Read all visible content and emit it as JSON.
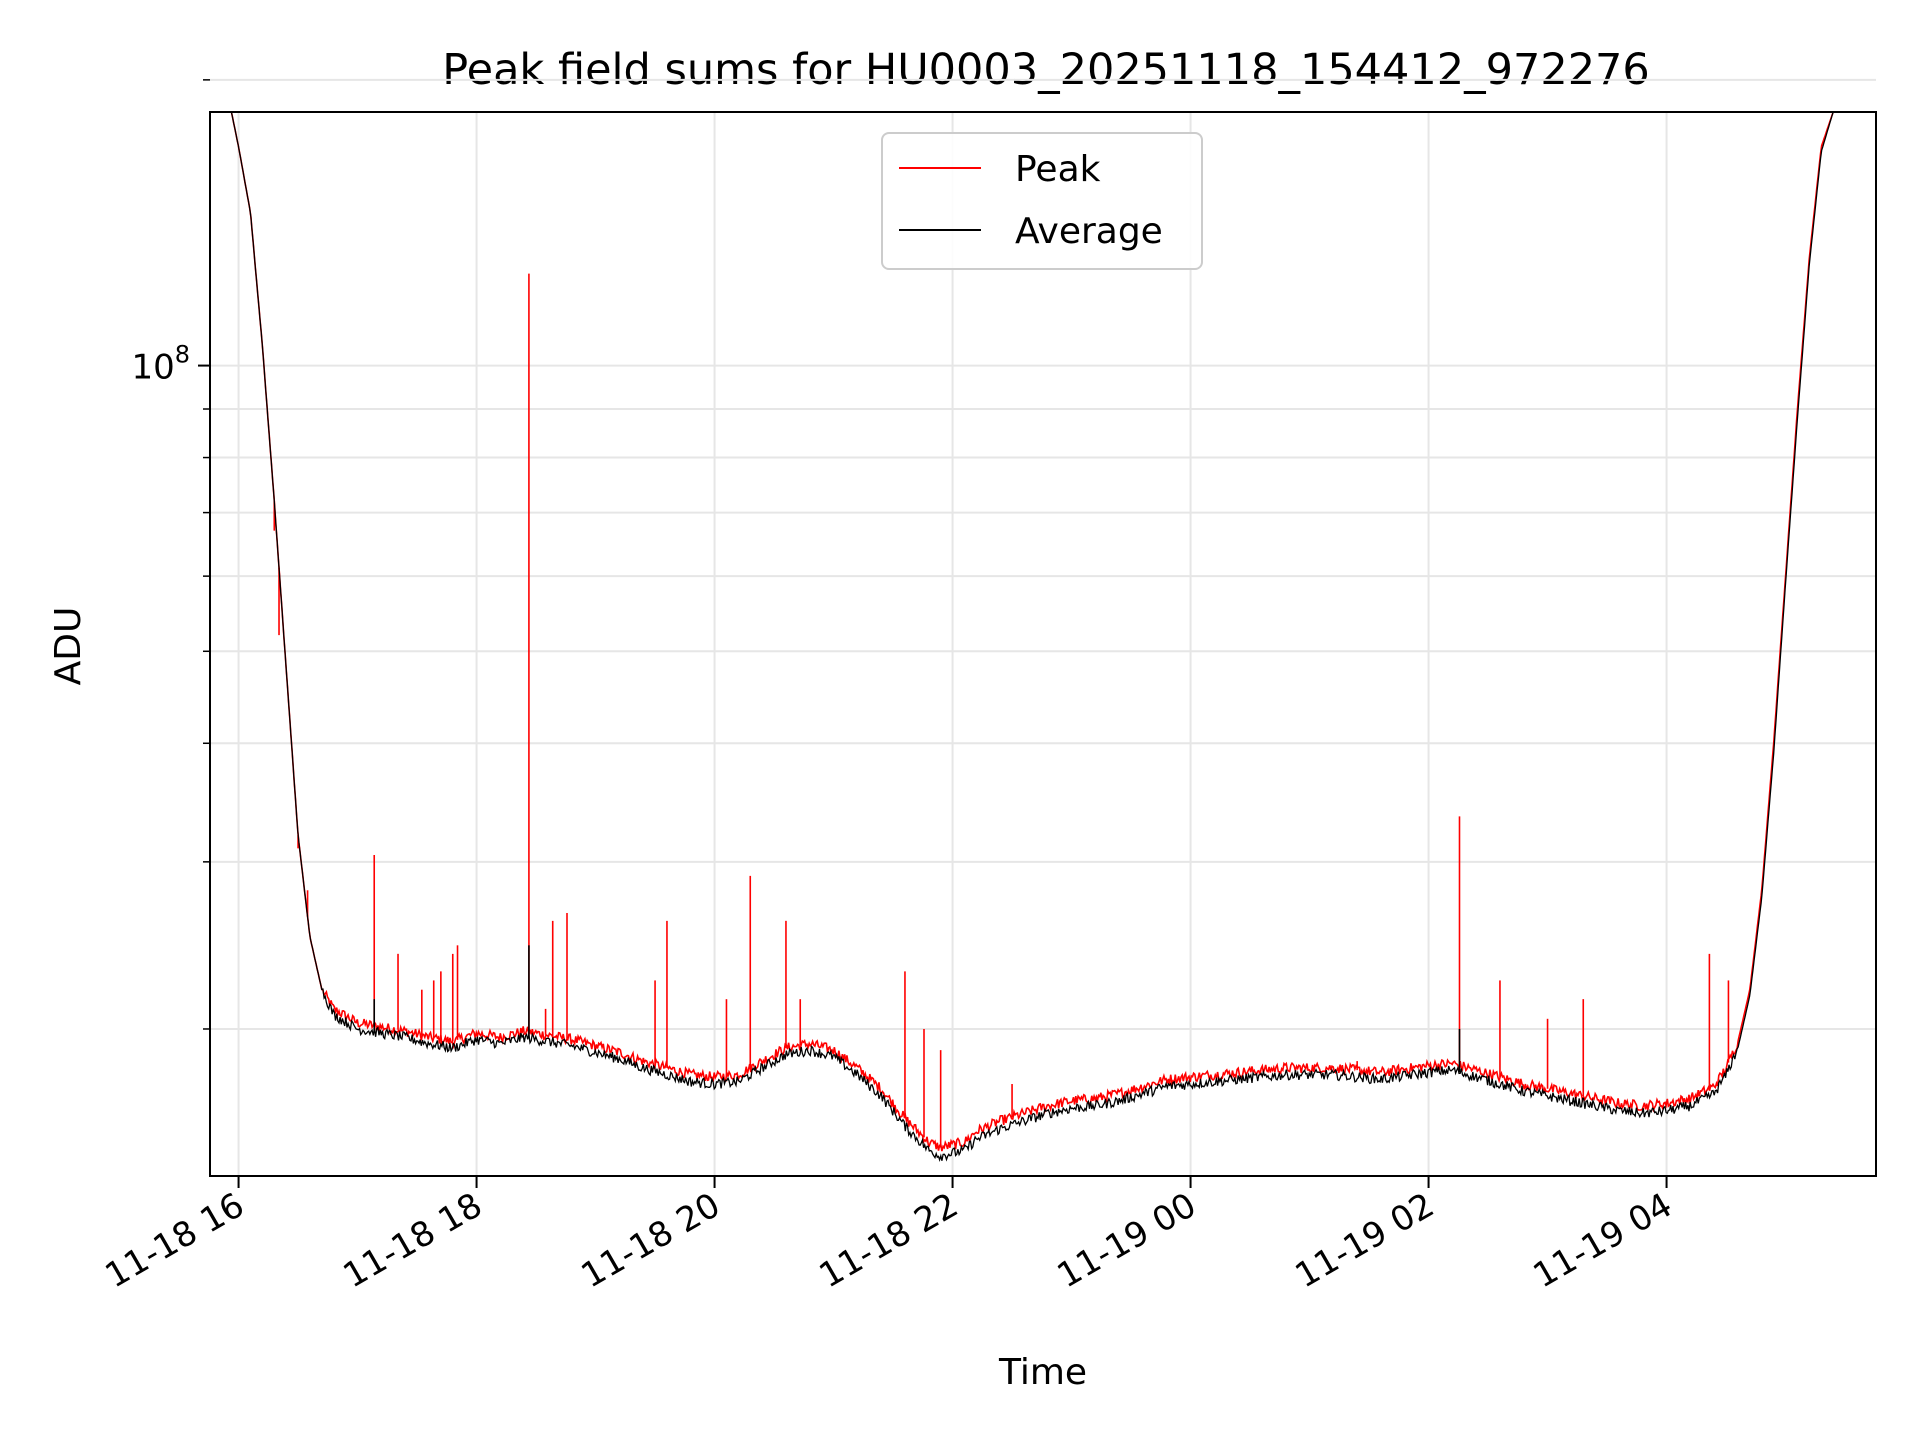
{
  "chart_data": {
    "type": "line",
    "title": "Peak field sums for HU0003_20251118_154412_972276",
    "xlabel": "Time",
    "ylabel": "ADU",
    "y_scale": "log",
    "grid": true,
    "legend_position": "top-center",
    "x_unit": "hours since 11-18 16:00",
    "xlim": [
      -0.12,
      6.88
    ],
    "ylim": [
      14000000,
      185000000
    ],
    "x_ticks": [
      {
        "x": 0,
        "label": "11-18 16"
      },
      {
        "x": 1,
        "label": "11-18 18"
      },
      {
        "x": 2,
        "label": "11-18 20"
      },
      {
        "x": 3,
        "label": "11-18 22"
      },
      {
        "x": 4,
        "label": "11-19 00"
      },
      {
        "x": 5,
        "label": "11-19 02"
      },
      {
        "x": 6,
        "label": "11-19 04"
      }
    ],
    "y_major_ticks": [
      {
        "value": 100000000,
        "base": "10",
        "exp": "8"
      }
    ],
    "y_minor_ticks": [
      20000000,
      30000000,
      40000000,
      50000000,
      60000000,
      70000000,
      80000000,
      90000000,
      200000000
    ],
    "series": [
      {
        "name": "Peak",
        "color": "#ff0000",
        "baseline": [
          [
            -0.03,
            185000000
          ],
          [
            0.0,
            170000000
          ],
          [
            0.05,
            145000000
          ],
          [
            0.1,
            105000000
          ],
          [
            0.15,
            72000000
          ],
          [
            0.2,
            48000000
          ],
          [
            0.25,
            32000000
          ],
          [
            0.3,
            25000000
          ],
          [
            0.35,
            22000000
          ],
          [
            0.4,
            21000000
          ],
          [
            0.5,
            20300000
          ],
          [
            0.6,
            20100000
          ],
          [
            0.7,
            19900000
          ],
          [
            0.8,
            19600000
          ],
          [
            0.9,
            19400000
          ],
          [
            1.0,
            19800000
          ],
          [
            1.1,
            19600000
          ],
          [
            1.2,
            19900000
          ],
          [
            1.3,
            19700000
          ],
          [
            1.4,
            19500000
          ],
          [
            1.5,
            19200000
          ],
          [
            1.6,
            18900000
          ],
          [
            1.7,
            18500000
          ],
          [
            1.8,
            18200000
          ],
          [
            1.9,
            17900000
          ],
          [
            2.0,
            17800000
          ],
          [
            2.1,
            17900000
          ],
          [
            2.2,
            18500000
          ],
          [
            2.3,
            19100000
          ],
          [
            2.4,
            19300000
          ],
          [
            2.5,
            19000000
          ],
          [
            2.6,
            18200000
          ],
          [
            2.7,
            17300000
          ],
          [
            2.8,
            16100000
          ],
          [
            2.9,
            15200000
          ],
          [
            2.95,
            15000000
          ],
          [
            3.05,
            15200000
          ],
          [
            3.1,
            15600000
          ],
          [
            3.2,
            16000000
          ],
          [
            3.3,
            16300000
          ],
          [
            3.4,
            16600000
          ],
          [
            3.5,
            16800000
          ],
          [
            3.6,
            16900000
          ],
          [
            3.7,
            17100000
          ],
          [
            3.8,
            17400000
          ],
          [
            3.9,
            17700000
          ],
          [
            4.0,
            17800000
          ],
          [
            4.2,
            18000000
          ],
          [
            4.4,
            18200000
          ],
          [
            4.6,
            18200000
          ],
          [
            4.8,
            18000000
          ],
          [
            5.0,
            18300000
          ],
          [
            5.1,
            18400000
          ],
          [
            5.2,
            18100000
          ],
          [
            5.3,
            17800000
          ],
          [
            5.4,
            17500000
          ],
          [
            5.5,
            17300000
          ],
          [
            5.6,
            17100000
          ],
          [
            5.7,
            16900000
          ],
          [
            5.8,
            16700000
          ],
          [
            5.9,
            16600000
          ],
          [
            6.0,
            16700000
          ],
          [
            6.1,
            16900000
          ],
          [
            6.2,
            17400000
          ],
          [
            6.25,
            18200000
          ],
          [
            6.3,
            19400000
          ],
          [
            6.35,
            22000000
          ],
          [
            6.4,
            28000000
          ],
          [
            6.45,
            40000000
          ],
          [
            6.5,
            60000000
          ],
          [
            6.55,
            90000000
          ],
          [
            6.6,
            130000000
          ],
          [
            6.65,
            170000000
          ],
          [
            6.7,
            185000000
          ]
        ],
        "spikes": [
          [
            0.15,
            67000000
          ],
          [
            0.17,
            52000000
          ],
          [
            0.25,
            31000000
          ],
          [
            0.29,
            28000000
          ],
          [
            0.57,
            30500000
          ],
          [
            0.67,
            24000000
          ],
          [
            0.77,
            22000000
          ],
          [
            0.82,
            22500000
          ],
          [
            0.85,
            23000000
          ],
          [
            0.9,
            24000000
          ],
          [
            0.92,
            24500000
          ],
          [
            1.22,
            125000000
          ],
          [
            1.29,
            21000000
          ],
          [
            1.32,
            26000000
          ],
          [
            1.38,
            26500000
          ],
          [
            1.75,
            22500000
          ],
          [
            1.8,
            26000000
          ],
          [
            2.05,
            21500000
          ],
          [
            2.15,
            29000000
          ],
          [
            2.3,
            26000000
          ],
          [
            2.36,
            21500000
          ],
          [
            2.8,
            23000000
          ],
          [
            2.88,
            20000000
          ],
          [
            2.95,
            19000000
          ],
          [
            3.25,
            17500000
          ],
          [
            4.7,
            18500000
          ],
          [
            5.13,
            33500000
          ],
          [
            5.3,
            22500000
          ],
          [
            5.5,
            20500000
          ],
          [
            5.65,
            21500000
          ],
          [
            6.18,
            24000000
          ],
          [
            6.26,
            22500000
          ]
        ]
      },
      {
        "name": "Average",
        "color": "#000000",
        "baseline": [
          [
            -0.03,
            185000000
          ],
          [
            0.0,
            170000000
          ],
          [
            0.05,
            145000000
          ],
          [
            0.1,
            105000000
          ],
          [
            0.15,
            72000000
          ],
          [
            0.2,
            48000000
          ],
          [
            0.25,
            32000000
          ],
          [
            0.3,
            25000000
          ],
          [
            0.35,
            22000000
          ],
          [
            0.4,
            20700000
          ],
          [
            0.5,
            20000000
          ],
          [
            0.6,
            19800000
          ],
          [
            0.7,
            19600000
          ],
          [
            0.8,
            19300000
          ],
          [
            0.9,
            19100000
          ],
          [
            1.0,
            19500000
          ],
          [
            1.1,
            19300000
          ],
          [
            1.2,
            19600000
          ],
          [
            1.3,
            19400000
          ],
          [
            1.4,
            19200000
          ],
          [
            1.5,
            18900000
          ],
          [
            1.6,
            18600000
          ],
          [
            1.7,
            18200000
          ],
          [
            1.8,
            17900000
          ],
          [
            1.9,
            17600000
          ],
          [
            2.0,
            17500000
          ],
          [
            2.1,
            17600000
          ],
          [
            2.2,
            18200000
          ],
          [
            2.3,
            18800000
          ],
          [
            2.4,
            19000000
          ],
          [
            2.5,
            18700000
          ],
          [
            2.6,
            17900000
          ],
          [
            2.7,
            17000000
          ],
          [
            2.8,
            15800000
          ],
          [
            2.9,
            14900000
          ],
          [
            2.95,
            14700000
          ],
          [
            3.05,
            14900000
          ],
          [
            3.1,
            15300000
          ],
          [
            3.2,
            15700000
          ],
          [
            3.3,
            16000000
          ],
          [
            3.4,
            16300000
          ],
          [
            3.5,
            16500000
          ],
          [
            3.6,
            16600000
          ],
          [
            3.7,
            16800000
          ],
          [
            3.8,
            17100000
          ],
          [
            3.9,
            17400000
          ],
          [
            4.0,
            17500000
          ],
          [
            4.2,
            17700000
          ],
          [
            4.4,
            17900000
          ],
          [
            4.6,
            17900000
          ],
          [
            4.8,
            17700000
          ],
          [
            5.0,
            18000000
          ],
          [
            5.1,
            18100000
          ],
          [
            5.2,
            17800000
          ],
          [
            5.3,
            17500000
          ],
          [
            5.4,
            17200000
          ],
          [
            5.5,
            17000000
          ],
          [
            5.6,
            16800000
          ],
          [
            5.7,
            16600000
          ],
          [
            5.8,
            16400000
          ],
          [
            5.9,
            16300000
          ],
          [
            6.0,
            16400000
          ],
          [
            6.1,
            16600000
          ],
          [
            6.2,
            17100000
          ],
          [
            6.25,
            17900000
          ],
          [
            6.3,
            19100000
          ],
          [
            6.35,
            21700000
          ],
          [
            6.4,
            27500000
          ],
          [
            6.45,
            39000000
          ],
          [
            6.5,
            59000000
          ],
          [
            6.55,
            88000000
          ],
          [
            6.6,
            128000000
          ],
          [
            6.65,
            168000000
          ],
          [
            6.7,
            185000000
          ]
        ],
        "spikes": [
          [
            1.22,
            24500000
          ],
          [
            5.13,
            20000000
          ],
          [
            0.57,
            21500000
          ]
        ]
      }
    ]
  }
}
